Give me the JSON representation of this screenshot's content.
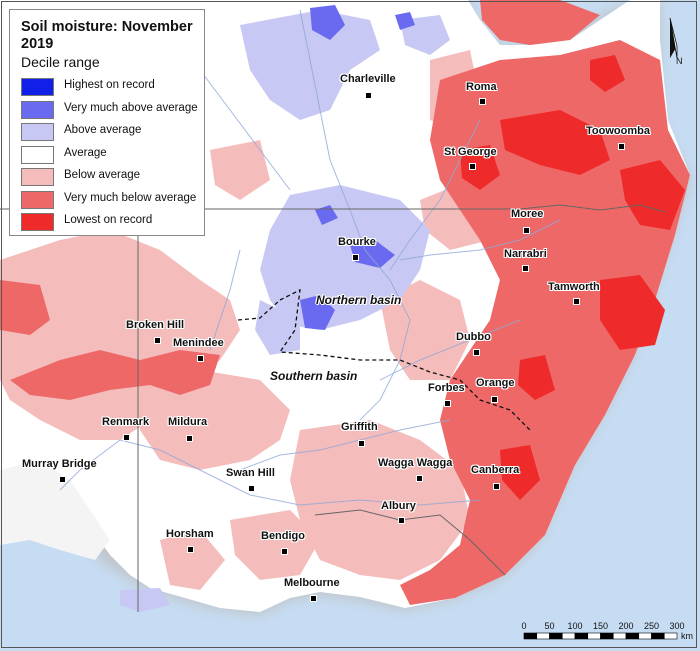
{
  "legend": {
    "title": "Soil moisture: November 2019",
    "subtitle": "Decile range",
    "items": [
      {
        "label": "Highest on record",
        "color": "#1020e8"
      },
      {
        "label": "Very much above average",
        "color": "#6a6af0"
      },
      {
        "label": "Above average",
        "color": "#c8c8f4"
      },
      {
        "label": "Average",
        "color": "#ffffff"
      },
      {
        "label": "Below average",
        "color": "#f5bcbc"
      },
      {
        "label": "Very much below average",
        "color": "#ee6868"
      },
      {
        "label": "Lowest on record",
        "color": "#ee2a2a"
      }
    ]
  },
  "places": [
    {
      "name": "Charleville"
    },
    {
      "name": "Roma"
    },
    {
      "name": "Toowoomba"
    },
    {
      "name": "St George"
    },
    {
      "name": "Moree"
    },
    {
      "name": "Bourke"
    },
    {
      "name": "Narrabri"
    },
    {
      "name": "Tamworth"
    },
    {
      "name": "Broken Hill"
    },
    {
      "name": "Menindee"
    },
    {
      "name": "Dubbo"
    },
    {
      "name": "Orange"
    },
    {
      "name": "Forbes"
    },
    {
      "name": "Renmark"
    },
    {
      "name": "Mildura"
    },
    {
      "name": "Griffith"
    },
    {
      "name": "Murray Bridge"
    },
    {
      "name": "Wagga Wagga"
    },
    {
      "name": "Canberra"
    },
    {
      "name": "Swan Hill"
    },
    {
      "name": "Albury"
    },
    {
      "name": "Horsham"
    },
    {
      "name": "Bendigo"
    },
    {
      "name": "Melbourne"
    }
  ],
  "basins": {
    "northern": "Northern basin",
    "southern": "Southern basin"
  },
  "scale": {
    "ticks": [
      "0",
      "50",
      "100",
      "150",
      "200",
      "250",
      "300"
    ],
    "unit": "km"
  },
  "north_label": "N"
}
